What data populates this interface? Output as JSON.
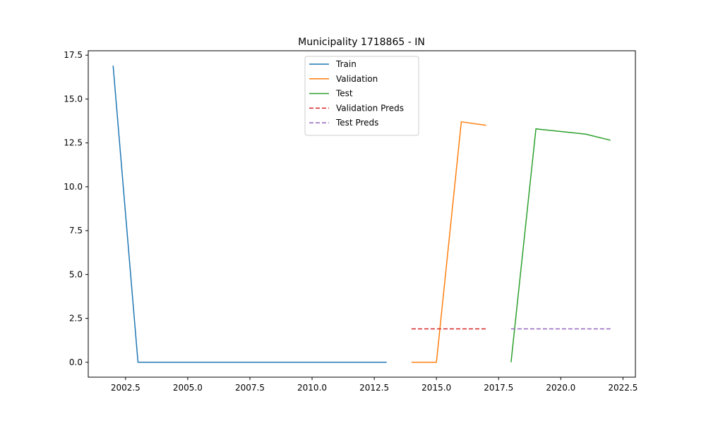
{
  "chart_data": {
    "type": "line",
    "title": "Municipality 1718865 - IN",
    "xlabel": "",
    "ylabel": "",
    "xlim": [
      2001.0,
      2023.0
    ],
    "ylim": [
      -0.85,
      17.75
    ],
    "xticks": [
      2002.5,
      2005.0,
      2007.5,
      2010.0,
      2012.5,
      2015.0,
      2017.5,
      2020.0,
      2022.5
    ],
    "xtick_labels": [
      "2002.5",
      "2005.0",
      "2007.5",
      "2010.0",
      "2012.5",
      "2015.0",
      "2017.5",
      "2020.0",
      "2022.5"
    ],
    "yticks": [
      0.0,
      2.5,
      5.0,
      7.5,
      10.0,
      12.5,
      15.0,
      17.5
    ],
    "ytick_labels": [
      "0.0",
      "2.5",
      "5.0",
      "7.5",
      "10.0",
      "12.5",
      "15.0",
      "17.5"
    ],
    "grid": false,
    "legend_position": "top-center",
    "series": [
      {
        "name": "Train",
        "color": "#1f77b4",
        "dash": "solid",
        "x": [
          2002,
          2003,
          2004,
          2005,
          2006,
          2007,
          2008,
          2009,
          2010,
          2011,
          2012,
          2013
        ],
        "y": [
          16.9,
          0.0,
          0.0,
          0.0,
          0.0,
          0.0,
          0.0,
          0.0,
          0.0,
          0.0,
          0.0,
          0.0
        ]
      },
      {
        "name": "Validation",
        "color": "#ff7f0e",
        "dash": "solid",
        "x": [
          2014,
          2015,
          2016,
          2017
        ],
        "y": [
          0.0,
          0.0,
          13.7,
          13.5
        ]
      },
      {
        "name": "Test",
        "color": "#2ca02c",
        "dash": "solid",
        "x": [
          2018,
          2019,
          2020,
          2021,
          2022
        ],
        "y": [
          0.0,
          13.3,
          13.15,
          13.0,
          12.65
        ]
      },
      {
        "name": "Validation Preds",
        "color": "#d62728",
        "dash": "dashed",
        "x": [
          2014,
          2015,
          2016,
          2017
        ],
        "y": [
          1.9,
          1.9,
          1.9,
          1.9
        ]
      },
      {
        "name": "Test Preds",
        "color": "#9467bd",
        "dash": "dashed",
        "x": [
          2018,
          2019,
          2020,
          2021,
          2022
        ],
        "y": [
          1.9,
          1.9,
          1.9,
          1.9,
          1.9
        ]
      }
    ]
  }
}
